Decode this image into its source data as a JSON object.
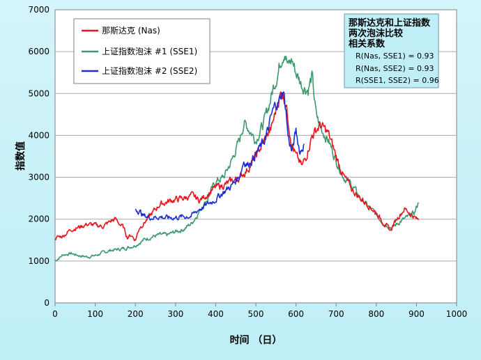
{
  "chart_data": {
    "type": "line",
    "xlabel": "时间  （日）",
    "ylabel": "指数值",
    "xlim": [
      0,
      1000
    ],
    "ylim": [
      0,
      7000
    ],
    "x_ticks": [
      "0",
      "100",
      "200",
      "300",
      "400",
      "500",
      "600",
      "700",
      "800",
      "900",
      "1000"
    ],
    "y_ticks": [
      "0",
      "1000",
      "2000",
      "3000",
      "4000",
      "5000",
      "6000",
      "7000"
    ],
    "grid": "horizontal",
    "legend_position": "top-left",
    "series": [
      {
        "name": "那斯达克 (Nas)",
        "color": "#e8141c",
        "points": [
          [
            0,
            1550
          ],
          [
            20,
            1600
          ],
          [
            40,
            1760
          ],
          [
            60,
            1810
          ],
          [
            80,
            1880
          ],
          [
            100,
            1850
          ],
          [
            120,
            1830
          ],
          [
            140,
            1960
          ],
          [
            150,
            2000
          ],
          [
            170,
            1800
          ],
          [
            180,
            1570
          ],
          [
            190,
            1620
          ],
          [
            200,
            1500
          ],
          [
            210,
            1800
          ],
          [
            230,
            2000
          ],
          [
            260,
            2350
          ],
          [
            290,
            2450
          ],
          [
            320,
            2500
          ],
          [
            340,
            2560
          ],
          [
            360,
            2450
          ],
          [
            380,
            2600
          ],
          [
            400,
            2750
          ],
          [
            430,
            2850
          ],
          [
            460,
            3000
          ],
          [
            480,
            3200
          ],
          [
            500,
            3500
          ],
          [
            520,
            3850
          ],
          [
            540,
            4200
          ],
          [
            555,
            4800
          ],
          [
            565,
            5050
          ],
          [
            575,
            4800
          ],
          [
            580,
            4400
          ],
          [
            590,
            3800
          ],
          [
            600,
            3500
          ],
          [
            615,
            3250
          ],
          [
            625,
            3500
          ],
          [
            640,
            4000
          ],
          [
            660,
            4250
          ],
          [
            680,
            4050
          ],
          [
            700,
            3500
          ],
          [
            720,
            3000
          ],
          [
            740,
            2700
          ],
          [
            760,
            2500
          ],
          [
            780,
            2350
          ],
          [
            800,
            2150
          ],
          [
            820,
            1900
          ],
          [
            835,
            1720
          ],
          [
            850,
            2000
          ],
          [
            870,
            2250
          ],
          [
            890,
            2100
          ],
          [
            900,
            2000
          ],
          [
            905,
            1980
          ]
        ]
      },
      {
        "name": "上证指数泡沫 #1 (SSE1)",
        "color": "#3a9a6b",
        "points": [
          [
            0,
            1000
          ],
          [
            20,
            1150
          ],
          [
            40,
            1180
          ],
          [
            60,
            1130
          ],
          [
            80,
            1100
          ],
          [
            100,
            1130
          ],
          [
            120,
            1200
          ],
          [
            140,
            1260
          ],
          [
            160,
            1280
          ],
          [
            180,
            1320
          ],
          [
            200,
            1380
          ],
          [
            220,
            1500
          ],
          [
            240,
            1580
          ],
          [
            260,
            1620
          ],
          [
            280,
            1620
          ],
          [
            300,
            1700
          ],
          [
            320,
            1760
          ],
          [
            340,
            1900
          ],
          [
            360,
            2200
          ],
          [
            380,
            2500
          ],
          [
            400,
            2900
          ],
          [
            420,
            3000
          ],
          [
            440,
            3400
          ],
          [
            460,
            3900
          ],
          [
            470,
            4300
          ],
          [
            480,
            4200
          ],
          [
            500,
            3900
          ],
          [
            520,
            4300
          ],
          [
            535,
            4800
          ],
          [
            545,
            5200
          ],
          [
            555,
            5500
          ],
          [
            565,
            5900
          ],
          [
            572,
            6050
          ],
          [
            580,
            5650
          ],
          [
            590,
            5800
          ],
          [
            600,
            5500
          ],
          [
            615,
            5200
          ],
          [
            630,
            5100
          ],
          [
            640,
            5400
          ],
          [
            650,
            4500
          ],
          [
            660,
            4200
          ],
          [
            680,
            3900
          ],
          [
            700,
            3400
          ],
          [
            720,
            3000
          ],
          [
            740,
            2800
          ],
          [
            760,
            2500
          ],
          [
            780,
            2300
          ],
          [
            800,
            2100
          ],
          [
            820,
            1900
          ],
          [
            840,
            1800
          ],
          [
            860,
            1950
          ],
          [
            880,
            2050
          ],
          [
            895,
            2150
          ],
          [
            905,
            2400
          ]
        ]
      },
      {
        "name": "上证指数泡沫 #2 (SSE2)",
        "color": "#1a2ed8",
        "points": [
          [
            200,
            2250
          ],
          [
            210,
            2200
          ],
          [
            220,
            2080
          ],
          [
            240,
            2040
          ],
          [
            260,
            2060
          ],
          [
            280,
            2030
          ],
          [
            300,
            2040
          ],
          [
            320,
            2060
          ],
          [
            340,
            2080
          ],
          [
            360,
            2250
          ],
          [
            380,
            2350
          ],
          [
            400,
            2480
          ],
          [
            420,
            2650
          ],
          [
            440,
            2800
          ],
          [
            460,
            3050
          ],
          [
            470,
            3400
          ],
          [
            480,
            3300
          ],
          [
            500,
            3550
          ],
          [
            520,
            3850
          ],
          [
            530,
            4100
          ],
          [
            540,
            4500
          ],
          [
            550,
            4750
          ],
          [
            560,
            4850
          ],
          [
            568,
            5100
          ],
          [
            575,
            4600
          ],
          [
            580,
            4000
          ],
          [
            590,
            3600
          ],
          [
            600,
            4100
          ],
          [
            610,
            3600
          ],
          [
            620,
            3800
          ]
        ]
      }
    ]
  },
  "correlation_box": {
    "title_lines": [
      "那斯达克和上证指数",
      "两次泡沫比较",
      "相关系数"
    ],
    "rows": [
      "R(Nas, SSE1)   = 0.93",
      "R(Nas, SSE2)   = 0.93",
      "R(SSE1, SSE2) = 0.96"
    ]
  }
}
